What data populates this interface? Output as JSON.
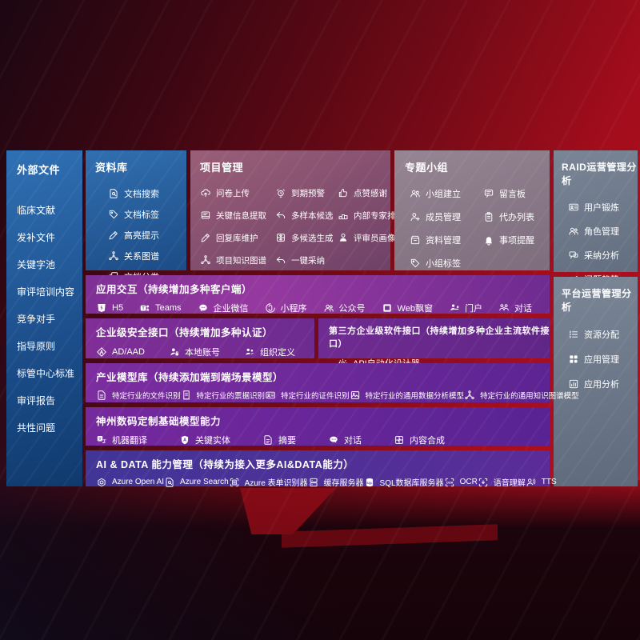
{
  "colors": {
    "background_red": "#b30e1d",
    "panel_blue": "#2e6fb2",
    "panel_purple": "#8a3a9c",
    "panel_gray": "#75808f",
    "panel_mauve": "#97607a",
    "panel_indigo": "#4c2f99"
  },
  "left_sidebar": {
    "title": "外部文件",
    "items": [
      "临床文献",
      "发补文件",
      "关键字池",
      "审评培训内容",
      "竞争对手",
      "指导原则",
      "标管中心标准",
      "审评报告",
      "共性问题"
    ]
  },
  "panels": {
    "library": {
      "title": "资料库",
      "items": [
        {
          "icon": "doc-search",
          "label": "文档搜索"
        },
        {
          "icon": "tag",
          "label": "文档标签"
        },
        {
          "icon": "pen",
          "label": "高亮提示"
        },
        {
          "icon": "graph",
          "label": "关系图谱"
        },
        {
          "icon": "docs",
          "label": "文档分类"
        }
      ]
    },
    "project": {
      "title": "项目管理",
      "items": [
        {
          "icon": "cloud-upload",
          "label": "问卷上传"
        },
        {
          "icon": "alarm",
          "label": "到期预警"
        },
        {
          "icon": "thumbs-up",
          "label": "点赞感谢"
        },
        {
          "icon": "extract",
          "label": "关键信息提取"
        },
        {
          "icon": "reply",
          "label": "多样本候选"
        },
        {
          "icon": "podium",
          "label": "内部专家排名"
        },
        {
          "icon": "pen",
          "label": "回复库维护"
        },
        {
          "icon": "grid-gen",
          "label": "多候选生成"
        },
        {
          "icon": "person",
          "label": "评审员画像"
        },
        {
          "icon": "graph",
          "label": "项目知识图谱"
        },
        {
          "icon": "reply",
          "label": "一键采纳"
        }
      ]
    },
    "groups": {
      "title": "专题小组",
      "items": [
        {
          "icon": "users",
          "label": "小组建立"
        },
        {
          "icon": "bbs",
          "label": "留言板"
        },
        {
          "icon": "person-add",
          "label": "成员管理"
        },
        {
          "icon": "clipboard",
          "label": "代办列表"
        },
        {
          "icon": "archive",
          "label": "资料管理"
        },
        {
          "icon": "bell",
          "label": "事项提醒"
        },
        {
          "icon": "tag",
          "label": "小组标签"
        }
      ]
    },
    "raid": {
      "title": "RAID运营管理分析",
      "items": [
        {
          "icon": "id-card",
          "label": "用户锻炼"
        },
        {
          "icon": "users",
          "label": "角色管理"
        },
        {
          "icon": "chat-qa",
          "label": "采纳分析"
        },
        {
          "icon": "trend",
          "label": "问题趋势"
        }
      ]
    },
    "platform": {
      "title": "平台运营管理分析",
      "items": [
        {
          "icon": "list",
          "label": "资源分配"
        },
        {
          "icon": "app-grid",
          "label": "应用管理"
        },
        {
          "icon": "chart-box",
          "label": "应用分析"
        }
      ]
    },
    "interaction": {
      "title": "应用交互（持续增加多种客户端）",
      "items": [
        {
          "icon": "h5",
          "label": "H5"
        },
        {
          "icon": "teams",
          "label": "Teams"
        },
        {
          "icon": "wechat",
          "label": "企业微信"
        },
        {
          "icon": "miniapp",
          "label": "小程序"
        },
        {
          "icon": "official",
          "label": "公众号"
        },
        {
          "icon": "browser",
          "label": "Web飘窗"
        },
        {
          "icon": "portal",
          "label": "门户"
        },
        {
          "icon": "dialog",
          "label": "对话"
        }
      ]
    },
    "security": {
      "title": "企业级安全接口（持续增加多种认证）",
      "items": [
        {
          "icon": "ad-diamond",
          "label": "AD/AAD"
        },
        {
          "icon": "person-key",
          "label": "本地账号"
        },
        {
          "icon": "org",
          "label": "组织定义"
        }
      ]
    },
    "thirdparty": {
      "title": "第三方企业级软件接口（持续增加多种企业主流软件接口）",
      "items": [
        {
          "icon": "api-gear",
          "label": "API自动化设计器"
        }
      ]
    },
    "industry": {
      "title": "产业模型库（持续添加端到端场景模型）",
      "items": [
        {
          "icon": "file",
          "label": "特定行业的文件识别"
        },
        {
          "icon": "receipt",
          "label": "特定行业的票据识别"
        },
        {
          "icon": "id-card",
          "label": "特定行业的证件识别"
        },
        {
          "icon": "image-chart",
          "label": "特定行业的通用数据分析模型"
        },
        {
          "icon": "graph",
          "label": "特定行业的通用知识图谱模型"
        }
      ]
    },
    "base": {
      "title": "神州数码定制基础模型能力",
      "items": [
        {
          "icon": "translate",
          "label": "机器翻译"
        },
        {
          "icon": "shield-a",
          "label": "关键实体"
        },
        {
          "icon": "summary",
          "label": "摘要"
        },
        {
          "icon": "chat",
          "label": "对话"
        },
        {
          "icon": "compose",
          "label": "内容合成"
        }
      ]
    },
    "aidata": {
      "title": "AI & DATA 能力管理（持续为接入更多AI&DATA能力）",
      "items": [
        {
          "icon": "openai",
          "label": "Azure Open AI"
        },
        {
          "icon": "doc-search",
          "label": "Azure Search"
        },
        {
          "icon": "form-scan",
          "label": "Azure 表单识别器"
        },
        {
          "icon": "server",
          "label": "缓存服务器"
        },
        {
          "icon": "database",
          "label": "SQL数据库服务器"
        },
        {
          "icon": "ocr",
          "label": "OCR"
        },
        {
          "icon": "speech",
          "label": "语音理解"
        },
        {
          "icon": "tts",
          "label": "TTS"
        }
      ]
    }
  }
}
